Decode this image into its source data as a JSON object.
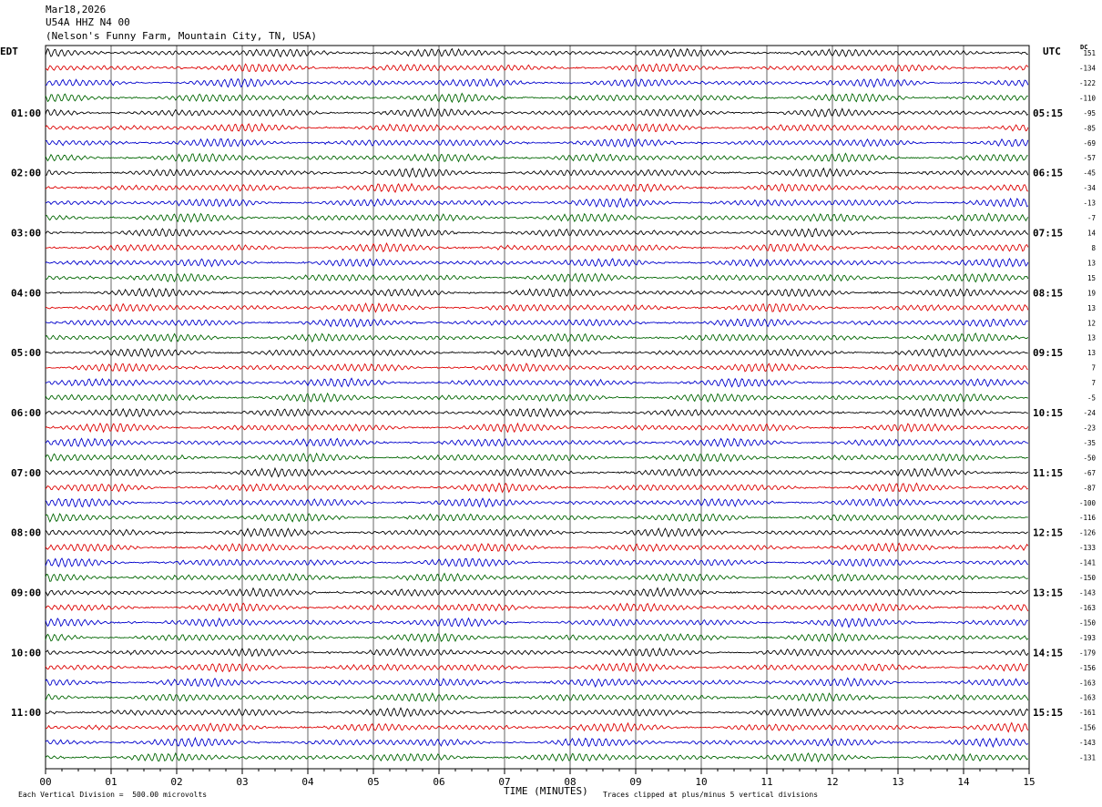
{
  "header": {
    "date": "Mar18,2026",
    "station": "U54A HHZ N4 00",
    "location": "(Nelson's Funny Farm, Mountain City, TN, USA)"
  },
  "left_zone_label": "EDT",
  "right_zone_label": "UTC",
  "dc_label": "DC",
  "x_axis_title": "TIME (MINUTES)",
  "footer": {
    "scale_note": "Each Vertical Division =  500.00 microvolts",
    "clip_note": "Traces clipped at plus/minus 5 vertical divisions"
  },
  "colors": {
    "trace_cycle": [
      "#000000",
      "#dd0000",
      "#0000cc",
      "#006600"
    ],
    "grid": "#000000",
    "background": "#ffffff"
  },
  "chart_data": {
    "type": "line",
    "xlabel": "TIME (MINUTES)",
    "xlim": [
      0,
      15
    ],
    "x_ticks": [
      "00",
      "01",
      "02",
      "03",
      "04",
      "05",
      "06",
      "07",
      "08",
      "09",
      "10",
      "11",
      "12",
      "13",
      "14",
      "15"
    ],
    "trace_count": 48,
    "edt_hour_labels": [
      "01:00",
      "02:00",
      "03:00",
      "04:00",
      "05:00",
      "06:00",
      "07:00",
      "08:00",
      "09:00",
      "10:00",
      "11:00"
    ],
    "utc_hour_labels": [
      "05:15",
      "06:15",
      "07:15",
      "08:15",
      "09:15",
      "10:15",
      "11:15",
      "12:15",
      "13:15",
      "14:15",
      "15:15"
    ],
    "dc_offsets": [
      151,
      -134,
      -122,
      -110,
      -95,
      -85,
      -69,
      -57,
      -45,
      -34,
      -13,
      -7,
      14,
      8,
      13,
      15,
      19,
      13,
      12,
      13,
      13,
      7,
      7,
      -5,
      -24,
      -23,
      -35,
      -50,
      -67,
      -87,
      -100,
      -116,
      -126,
      -133,
      -141,
      -150,
      -143,
      -163,
      -150,
      -193,
      -179,
      -156,
      -163,
      -163,
      -161,
      -156,
      -143,
      -131
    ]
  }
}
